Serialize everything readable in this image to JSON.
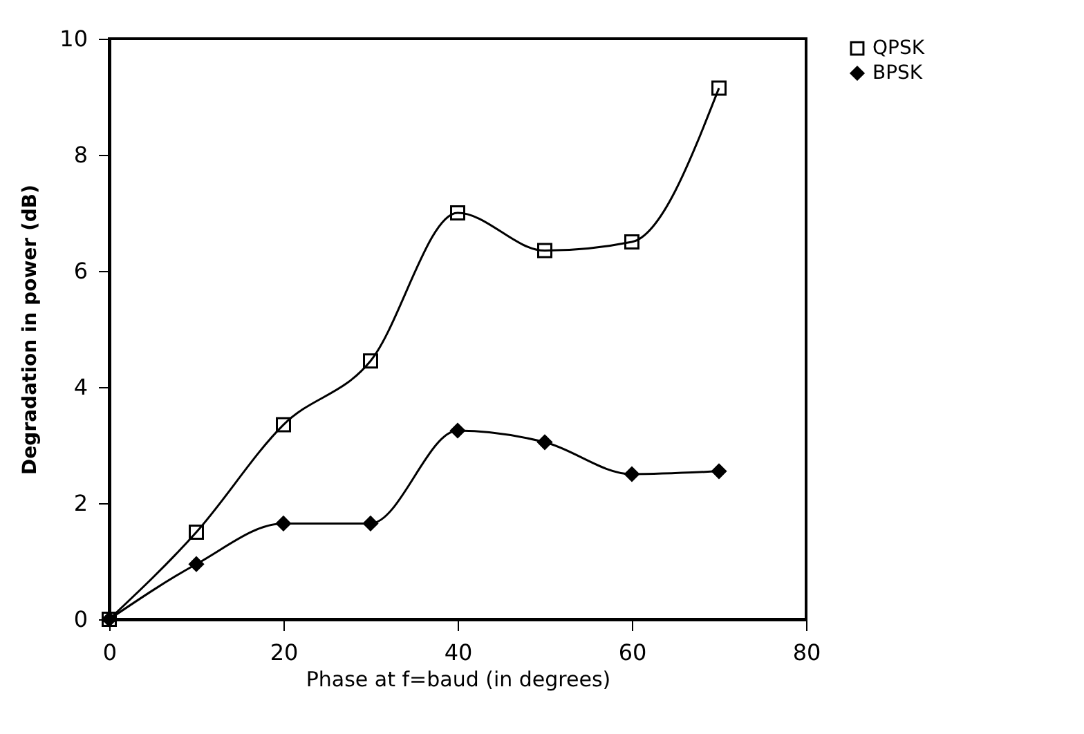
{
  "chart_data": {
    "type": "line",
    "xlabel": "Phase at f=baud (in degrees)",
    "ylabel": "Degradation in power (dB)",
    "x": [
      0,
      10,
      20,
      30,
      40,
      50,
      60,
      70
    ],
    "series": [
      {
        "name": "QPSK",
        "color": "#000000",
        "marker": "square",
        "values": [
          0,
          1.5,
          3.35,
          4.45,
          7.0,
          6.35,
          6.5,
          9.15
        ]
      },
      {
        "name": "BPSK",
        "color": "#000000",
        "marker": "diamond",
        "values": [
          0,
          0.95,
          1.65,
          1.65,
          3.25,
          3.05,
          2.5,
          2.55
        ]
      }
    ],
    "xlim": [
      0,
      80
    ],
    "xticks": [
      0,
      20,
      40,
      60,
      80
    ],
    "ylim": [
      0,
      10
    ],
    "yticks": [
      0,
      2,
      4,
      6,
      8,
      10
    ],
    "grid": false,
    "legend": "right",
    "line_style": "solid"
  }
}
